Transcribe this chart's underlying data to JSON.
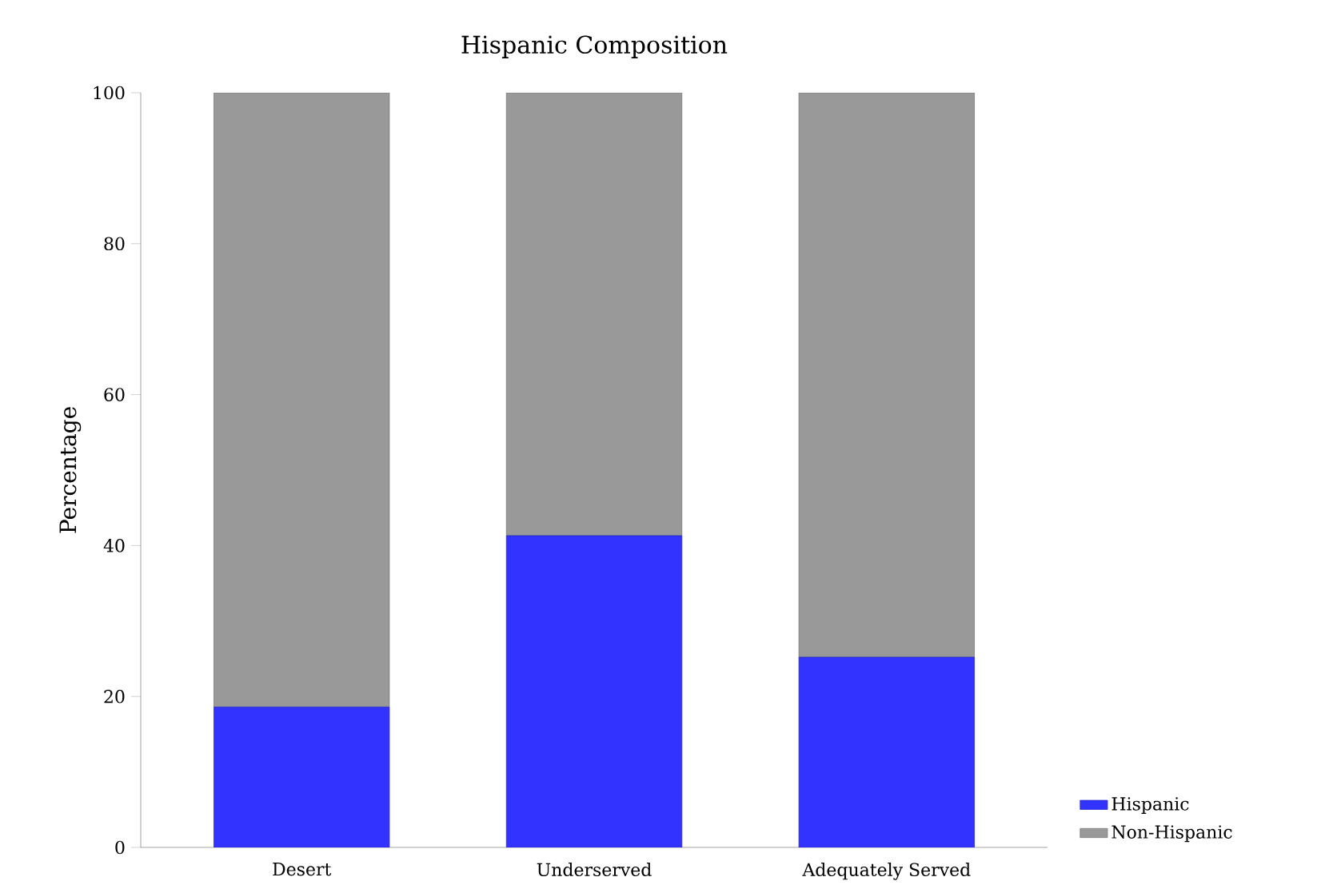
{
  "chart_data": {
    "type": "bar",
    "title": "Hispanic Composition",
    "ylabel": "Percentage",
    "categories": [
      "Desert",
      "Underserved",
      "Adequately Served"
    ],
    "stacked": true,
    "series": [
      {
        "name": "Hispanic",
        "color": "#3333ff",
        "values": [
          18.6,
          41.3,
          25.2
        ]
      },
      {
        "name": "Non-Hispanic",
        "color": "#999999",
        "values": [
          81.4,
          58.7,
          74.8
        ]
      }
    ],
    "ylim": [
      0,
      100
    ],
    "yticks": [
      0,
      20,
      40,
      60,
      80,
      100
    ],
    "legend": "bottom right"
  }
}
